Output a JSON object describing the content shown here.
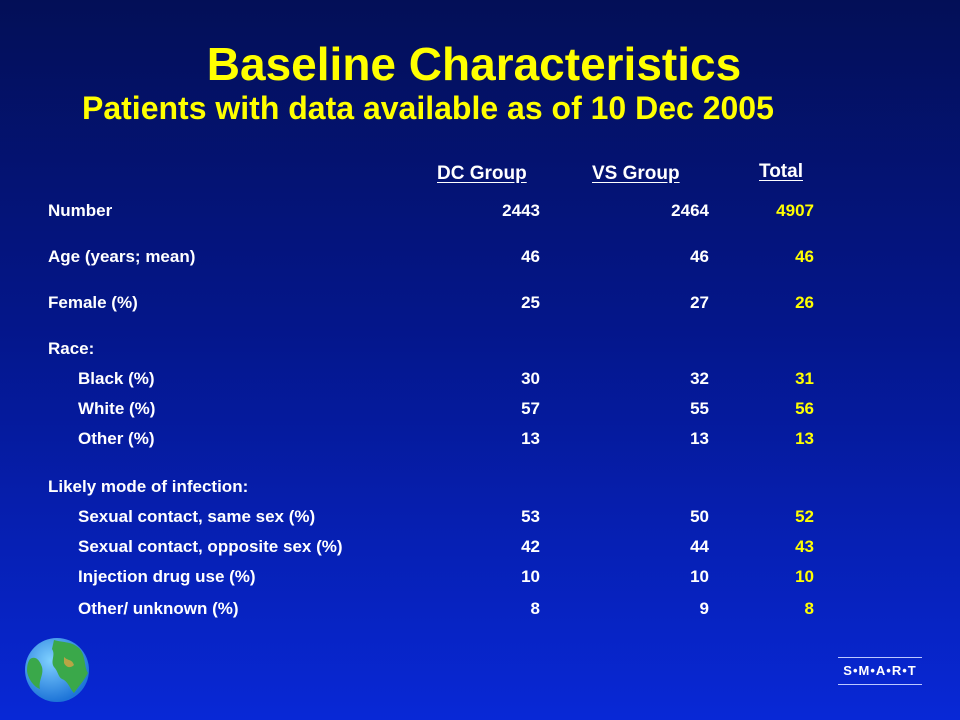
{
  "slide": {
    "title": "Baseline Characteristics",
    "subtitle": "Patients with data available as of 10 Dec 2005"
  },
  "table": {
    "columns": [
      "DC Group",
      "VS Group",
      "Total"
    ],
    "rows": [
      {
        "label": "Number",
        "indent": false,
        "values": [
          "2443",
          "2464",
          "4907"
        ]
      },
      {
        "label": "Age (years; mean)",
        "indent": false,
        "values": [
          "46",
          "46",
          "46"
        ]
      },
      {
        "label": "Female (%)",
        "indent": false,
        "values": [
          "25",
          "27",
          "26"
        ]
      },
      {
        "label": "Race:",
        "indent": false,
        "values": [
          "",
          "",
          ""
        ]
      },
      {
        "label": "Black (%)",
        "indent": true,
        "values": [
          "30",
          "32",
          "31"
        ]
      },
      {
        "label": "White (%)",
        "indent": true,
        "values": [
          "57",
          "55",
          "56"
        ]
      },
      {
        "label": "Other (%)",
        "indent": true,
        "values": [
          "13",
          "13",
          "13"
        ]
      },
      {
        "label": "Likely mode of infection:",
        "indent": false,
        "values": [
          "",
          "",
          ""
        ]
      },
      {
        "label": "Sexual contact, same sex (%)",
        "indent": true,
        "values": [
          "53",
          "50",
          "52"
        ]
      },
      {
        "label": "Sexual contact, opposite sex (%)",
        "indent": true,
        "values": [
          "42",
          "44",
          "43"
        ]
      },
      {
        "label": "Injection drug use (%)",
        "indent": true,
        "values": [
          "10",
          "10",
          "10"
        ]
      },
      {
        "label": "Other/ unknown (%)",
        "indent": true,
        "values": [
          "8",
          "9",
          "8"
        ]
      }
    ]
  },
  "logo": {
    "text": "S•M•A•R•T"
  },
  "icons": {
    "globe": "globe-icon"
  },
  "colors": {
    "title": "#ffff00",
    "total_column": "#ffff00",
    "text": "#ffffff",
    "background_top": "#030f57",
    "background_bottom": "#0828d6"
  }
}
